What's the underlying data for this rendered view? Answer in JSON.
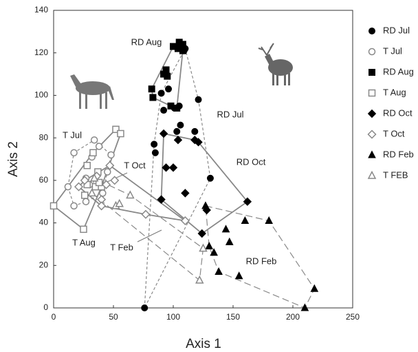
{
  "chart_data": {
    "type": "scatter",
    "x_label": "Axis 1",
    "y_label": "Axis 2",
    "xlim": [
      0,
      250
    ],
    "xticks": [
      0,
      50,
      100,
      150,
      200,
      250
    ],
    "ylim": [
      0,
      140
    ],
    "yticks": [
      0,
      20,
      40,
      60,
      80,
      100,
      120,
      140
    ],
    "annotations": [
      "RD Aug",
      "RD Jul",
      "RD Oct",
      "RD Feb",
      "T Jul",
      "T Oct",
      "T Aug",
      "T Feb"
    ],
    "series": [
      {
        "name": "RD Jul",
        "marker": "circle",
        "filled": true,
        "hull": "dashed",
        "x": [
          76,
          84,
          85,
          90,
          92,
          96,
          101,
          105,
          103,
          109,
          110,
          118,
          121,
          131,
          106
        ],
        "y": [
          0,
          77,
          73,
          101,
          93,
          103,
          94,
          95,
          83,
          121,
          122,
          83,
          98,
          61,
          86
        ]
      },
      {
        "name": "T Jul",
        "marker": "circle",
        "filled": false,
        "hull": "dashed",
        "x": [
          12,
          17,
          17,
          27,
          27,
          30,
          34,
          32,
          35,
          38,
          41,
          45,
          48
        ],
        "y": [
          57,
          73,
          48,
          61,
          50,
          58,
          79,
          71,
          57,
          76,
          54,
          64,
          72
        ]
      },
      {
        "name": "RD Aug",
        "marker": "square",
        "filled": true,
        "hull": "solid",
        "x": [
          82,
          83,
          92,
          94,
          98,
          103,
          100,
          104,
          105,
          108,
          108,
          95
        ],
        "y": [
          103,
          99,
          110,
          112,
          95,
          94,
          123,
          122,
          125,
          124,
          121,
          109
        ]
      },
      {
        "name": "T Aug",
        "marker": "square",
        "filled": false,
        "hull": "solid",
        "x": [
          0,
          25,
          26,
          28,
          28,
          33,
          35,
          37,
          40,
          52,
          56,
          38
        ],
        "y": [
          48,
          37,
          53,
          67,
          58,
          73,
          57,
          64,
          57,
          84,
          82,
          59
        ]
      },
      {
        "name": "RD Oct",
        "marker": "diamond",
        "filled": true,
        "hull": "solid",
        "x": [
          92,
          94,
          100,
          104,
          110,
          118,
          121,
          124,
          128,
          162,
          90
        ],
        "y": [
          82,
          66,
          66,
          79,
          54,
          79,
          78,
          35,
          46,
          50,
          51
        ]
      },
      {
        "name": "T Oct",
        "marker": "diamond",
        "filled": false,
        "hull": "solid",
        "x": [
          21,
          26,
          36,
          40,
          40,
          44,
          47,
          51,
          77,
          110
        ],
        "y": [
          57,
          60,
          62,
          51,
          48,
          58,
          67,
          60,
          44,
          41
        ]
      },
      {
        "name": "RD Feb",
        "marker": "triangle",
        "filled": true,
        "hull": "longdash",
        "x": [
          127,
          130,
          134,
          138,
          144,
          147,
          155,
          160,
          180,
          218,
          210
        ],
        "y": [
          48,
          29,
          26,
          17,
          37,
          31,
          15,
          41,
          41,
          9,
          0
        ]
      },
      {
        "name": "T FEB",
        "marker": "triangle",
        "filled": false,
        "hull": "longdash",
        "x": [
          32,
          52,
          55,
          64,
          125,
          122,
          34
        ],
        "y": [
          54,
          48,
          49,
          53,
          28,
          13,
          61
        ]
      }
    ]
  }
}
